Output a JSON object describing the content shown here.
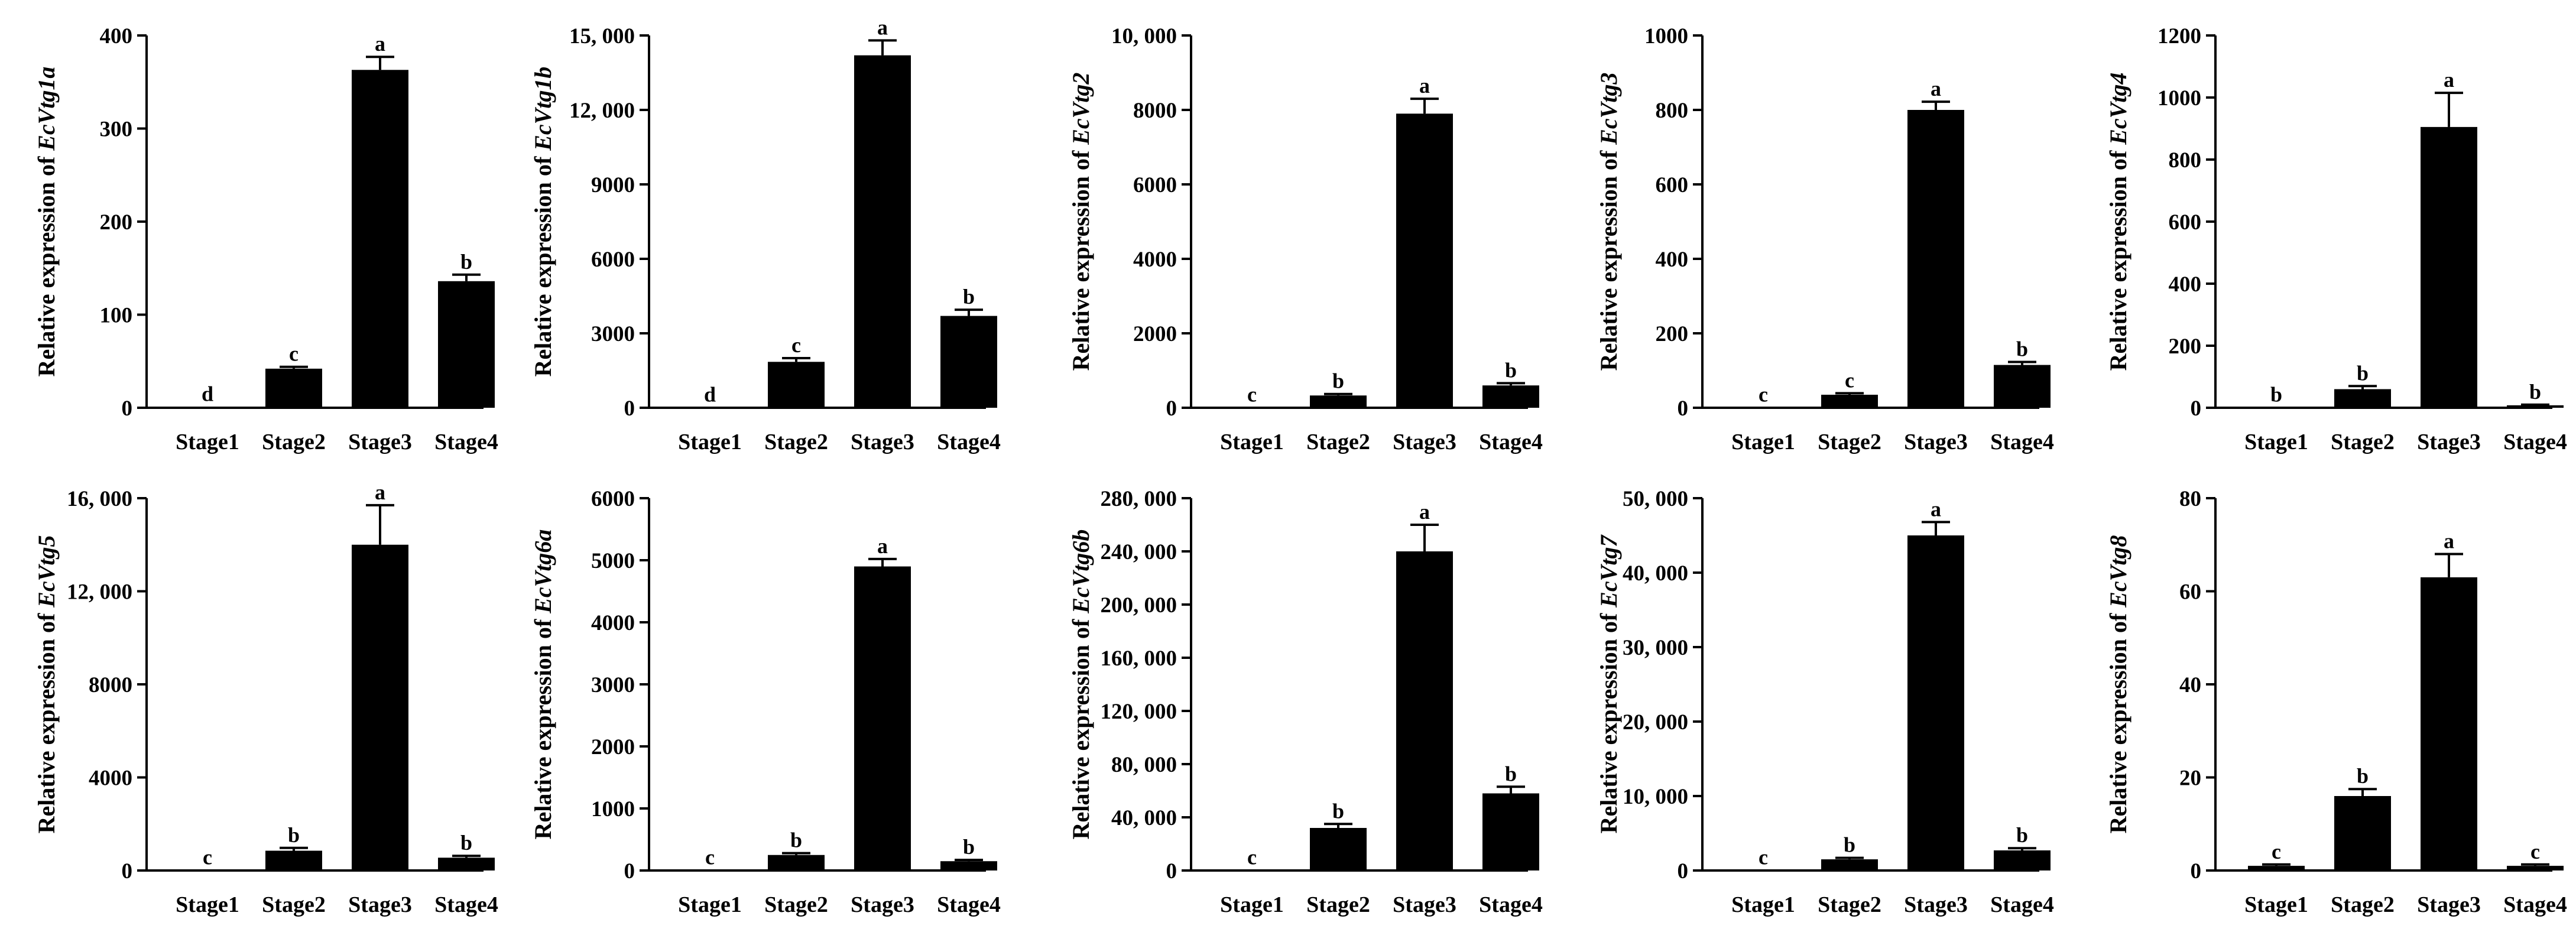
{
  "figure": {
    "ylabel_prefix": "Relative expression of "
  },
  "chart_data": [
    {
      "type": "bar",
      "gene": "EcVtg1a",
      "ylabel": "Relative expression of EcVtg1a",
      "categories": [
        "Stage1",
        "Stage2",
        "Stage3",
        "Stage4"
      ],
      "values": [
        1,
        42,
        363,
        136
      ],
      "errors": [
        0,
        2,
        14,
        7
      ],
      "significance": [
        "d",
        "c",
        "a",
        "b"
      ],
      "ylim": [
        0,
        400
      ],
      "yticks": [
        0,
        100,
        200,
        300,
        400
      ],
      "ytick_labels": [
        "0",
        "100",
        "200",
        "300",
        "400"
      ]
    },
    {
      "type": "bar",
      "gene": "EcVtg1b",
      "ylabel": "Relative expression of EcVtg1b",
      "categories": [
        "Stage1",
        "Stage2",
        "Stage3",
        "Stage4"
      ],
      "values": [
        10,
        1850,
        14200,
        3700
      ],
      "errors": [
        0,
        150,
        600,
        250
      ],
      "significance": [
        "d",
        "c",
        "a",
        "b"
      ],
      "ylim": [
        0,
        15000
      ],
      "yticks": [
        0,
        3000,
        6000,
        9000,
        12000,
        15000
      ],
      "ytick_labels": [
        "0",
        "3000",
        "6000",
        "9000",
        "12, 000",
        "15, 000"
      ]
    },
    {
      "type": "bar",
      "gene": "EcVtg2",
      "ylabel": "Relative expression of EcVtg2",
      "categories": [
        "Stage1",
        "Stage2",
        "Stage3",
        "Stage4"
      ],
      "values": [
        5,
        330,
        7900,
        600
      ],
      "errors": [
        0,
        40,
        400,
        60
      ],
      "significance": [
        "c",
        "b",
        "a",
        "b"
      ],
      "ylim": [
        0,
        10000
      ],
      "yticks": [
        0,
        2000,
        4000,
        6000,
        8000,
        10000
      ],
      "ytick_labels": [
        "0",
        "2000",
        "4000",
        "6000",
        "8000",
        "10, 000"
      ]
    },
    {
      "type": "bar",
      "gene": "EcVtg3",
      "ylabel": "Relative expression of EcVtg3",
      "categories": [
        "Stage1",
        "Stage2",
        "Stage3",
        "Stage4"
      ],
      "values": [
        1,
        35,
        800,
        115
      ],
      "errors": [
        0,
        4,
        22,
        8
      ],
      "significance": [
        "c",
        "c",
        "a",
        "b"
      ],
      "ylim": [
        0,
        1000
      ],
      "yticks": [
        0,
        200,
        400,
        600,
        800,
        1000
      ],
      "ytick_labels": [
        "0",
        "200",
        "400",
        "600",
        "800",
        "1000"
      ]
    },
    {
      "type": "bar",
      "gene": "EcVtg4",
      "ylabel": "Relative expression of EcVtg4",
      "categories": [
        "Stage1",
        "Stage2",
        "Stage3",
        "Stage4"
      ],
      "values": [
        1,
        60,
        905,
        8
      ],
      "errors": [
        0,
        10,
        110,
        2
      ],
      "significance": [
        "b",
        "b",
        "a",
        "b"
      ],
      "ylim": [
        0,
        1200
      ],
      "yticks": [
        0,
        200,
        400,
        600,
        800,
        1000,
        1200
      ],
      "ytick_labels": [
        "0",
        "200",
        "400",
        "600",
        "800",
        "1000",
        "1200"
      ]
    },
    {
      "type": "bar",
      "gene": "EcVtg5",
      "ylabel": "Relative expression of EcVtg5",
      "categories": [
        "Stage1",
        "Stage2",
        "Stage3",
        "Stage4"
      ],
      "values": [
        10,
        850,
        14000,
        550
      ],
      "errors": [
        0,
        120,
        1700,
        80
      ],
      "significance": [
        "c",
        "b",
        "a",
        "b"
      ],
      "ylim": [
        0,
        16000
      ],
      "yticks": [
        0,
        4000,
        8000,
        12000,
        16000
      ],
      "ytick_labels": [
        "0",
        "4000",
        "8000",
        "12, 000",
        "16, 000"
      ]
    },
    {
      "type": "bar",
      "gene": "EcVtg6a",
      "ylabel": "Relative expression of EcVtg6a",
      "categories": [
        "Stage1",
        "Stage2",
        "Stage3",
        "Stage4"
      ],
      "values": [
        5,
        250,
        4900,
        150
      ],
      "errors": [
        0,
        30,
        120,
        20
      ],
      "significance": [
        "c",
        "b",
        "a",
        "b"
      ],
      "ylim": [
        0,
        6000
      ],
      "yticks": [
        0,
        1000,
        2000,
        3000,
        4000,
        5000,
        6000
      ],
      "ytick_labels": [
        "0",
        "1000",
        "2000",
        "3000",
        "4000",
        "5000",
        "6000"
      ]
    },
    {
      "type": "bar",
      "gene": "EcVtg6b",
      "ylabel": "Relative expression of EcVtg6b",
      "categories": [
        "Stage1",
        "Stage2",
        "Stage3",
        "Stage4"
      ],
      "values": [
        200,
        32000,
        240000,
        58000
      ],
      "errors": [
        0,
        3000,
        20000,
        5000
      ],
      "significance": [
        "c",
        "b",
        "a",
        "b"
      ],
      "ylim": [
        0,
        280000
      ],
      "yticks": [
        0,
        40000,
        80000,
        120000,
        160000,
        200000,
        240000,
        280000
      ],
      "ytick_labels": [
        "0",
        "40, 000",
        "80, 000",
        "120, 000",
        "160, 000",
        "200, 000",
        "240, 000",
        "280, 000"
      ]
    },
    {
      "type": "bar",
      "gene": "EcVtg7",
      "ylabel": "Relative expression of EcVtg7",
      "categories": [
        "Stage1",
        "Stage2",
        "Stage3",
        "Stage4"
      ],
      "values": [
        50,
        1500,
        45000,
        2700
      ],
      "errors": [
        0,
        200,
        1800,
        300
      ],
      "significance": [
        "c",
        "b",
        "a",
        "b"
      ],
      "ylim": [
        0,
        50000
      ],
      "yticks": [
        0,
        10000,
        20000,
        30000,
        40000,
        50000
      ],
      "ytick_labels": [
        "0",
        "10, 000",
        "20, 000",
        "30, 000",
        "40, 000",
        "50, 000"
      ]
    },
    {
      "type": "bar",
      "gene": "EcVtg8",
      "ylabel": "Relative expression of EcVtg8",
      "categories": [
        "Stage1",
        "Stage2",
        "Stage3",
        "Stage4"
      ],
      "values": [
        1,
        16,
        63,
        1
      ],
      "errors": [
        0.3,
        1.5,
        5,
        0.3
      ],
      "significance": [
        "c",
        "b",
        "a",
        "c"
      ],
      "ylim": [
        0,
        80
      ],
      "yticks": [
        0,
        20,
        40,
        60,
        80
      ],
      "ytick_labels": [
        "0",
        "20",
        "40",
        "60",
        "80"
      ]
    }
  ]
}
